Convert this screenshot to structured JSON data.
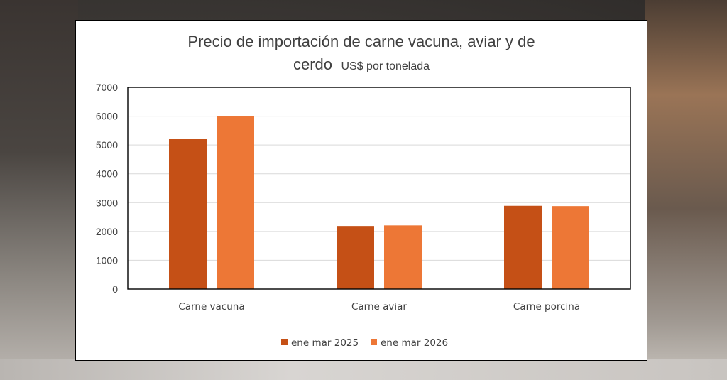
{
  "chart_data": {
    "type": "bar",
    "title_line1": "Precio de importación de carne vacuna, aviar y de",
    "title_line2_main": "cerdo",
    "title_line2_unit": "US$ por tonelada",
    "xlabel": "",
    "ylabel": "",
    "categories": [
      "Carne vacuna",
      "Carne aviar",
      "Carne porcina"
    ],
    "series": [
      {
        "name": "ene mar 2025",
        "values": [
          5220,
          2190,
          2890
        ],
        "color": "#c55016"
      },
      {
        "name": "ene mar 2026",
        "values": [
          6010,
          2210,
          2880
        ],
        "color": "#ed7736"
      }
    ],
    "ylim": [
      0,
      7000
    ],
    "yticks": [
      0,
      1000,
      2000,
      3000,
      4000,
      5000,
      6000,
      7000
    ],
    "grid": true,
    "legend": "bottom"
  }
}
